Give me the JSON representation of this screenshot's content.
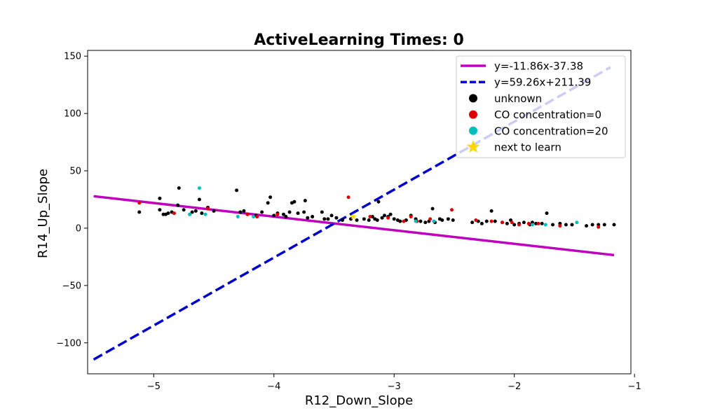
{
  "chart_data": {
    "type": "scatter",
    "title": "ActiveLearning Times: 0",
    "xlabel": "R12_Down_Slope",
    "ylabel": "R14_Up_Slope",
    "xlim": [
      -5.55,
      -1.03
    ],
    "ylim": [
      -127,
      155
    ],
    "xticks": [
      -5,
      -4,
      -3,
      -2,
      -1
    ],
    "yticks": [
      -100,
      -50,
      0,
      50,
      100,
      150
    ],
    "xtick_labels": [
      "−5",
      "−4",
      "−3",
      "−2",
      "−1"
    ],
    "ytick_labels": [
      "−100",
      "−50",
      "0",
      "50",
      "100",
      "150"
    ],
    "grid": false,
    "legend_position": "top-right",
    "lines": [
      {
        "name": "y=-11.86x-37.38",
        "slope": -11.86,
        "intercept": -37.38,
        "x_range": [
          -5.5,
          -1.17
        ],
        "color": "#bf00bf",
        "style": "solid"
      },
      {
        "name": "y=59.26x+211.39",
        "slope": 59.26,
        "intercept": 211.39,
        "x_range": [
          -5.5,
          -1.2
        ],
        "color": "#0000cc",
        "style": "dashed"
      }
    ],
    "series": [
      {
        "name": "unknown",
        "color": "#000000",
        "points": [
          [
            -5.12,
            14
          ],
          [
            -4.95,
            26
          ],
          [
            -4.95,
            16
          ],
          [
            -4.92,
            12
          ],
          [
            -4.9,
            12
          ],
          [
            -4.88,
            13
          ],
          [
            -4.85,
            14
          ],
          [
            -4.8,
            20
          ],
          [
            -4.79,
            35
          ],
          [
            -4.75,
            16
          ],
          [
            -4.7,
            12
          ],
          [
            -4.68,
            14
          ],
          [
            -4.65,
            15
          ],
          [
            -4.62,
            25
          ],
          [
            -4.6,
            13
          ],
          [
            -4.55,
            18
          ],
          [
            -4.5,
            15
          ],
          [
            -4.31,
            33
          ],
          [
            -4.28,
            14
          ],
          [
            -4.25,
            15
          ],
          [
            -4.22,
            12
          ],
          [
            -4.15,
            11
          ],
          [
            -4.1,
            14
          ],
          [
            -4.05,
            22
          ],
          [
            -4.03,
            27
          ],
          [
            -4.0,
            11
          ],
          [
            -3.97,
            13
          ],
          [
            -3.92,
            12
          ],
          [
            -3.9,
            10
          ],
          [
            -3.87,
            14
          ],
          [
            -3.85,
            22
          ],
          [
            -3.83,
            23
          ],
          [
            -3.8,
            13
          ],
          [
            -3.75,
            14
          ],
          [
            -3.74,
            24
          ],
          [
            -3.72,
            9
          ],
          [
            -3.68,
            10
          ],
          [
            -3.6,
            14
          ],
          [
            -3.58,
            8
          ],
          [
            -3.55,
            8
          ],
          [
            -3.52,
            11
          ],
          [
            -3.48,
            9
          ],
          [
            -3.43,
            7
          ],
          [
            -3.36,
            8
          ],
          [
            -3.31,
            7
          ],
          [
            -3.25,
            8
          ],
          [
            -3.21,
            7
          ],
          [
            -3.18,
            10
          ],
          [
            -3.16,
            8
          ],
          [
            -3.14,
            7
          ],
          [
            -3.13,
            23
          ],
          [
            -3.1,
            9
          ],
          [
            -3.08,
            11
          ],
          [
            -3.05,
            10
          ],
          [
            -3.03,
            12
          ],
          [
            -3.0,
            8
          ],
          [
            -2.97,
            7
          ],
          [
            -2.95,
            6
          ],
          [
            -2.9,
            7
          ],
          [
            -2.86,
            11
          ],
          [
            -2.82,
            8
          ],
          [
            -2.78,
            6
          ],
          [
            -2.74,
            5
          ],
          [
            -2.71,
            6
          ],
          [
            -2.68,
            17
          ],
          [
            -2.66,
            5
          ],
          [
            -2.62,
            8
          ],
          [
            -2.6,
            7
          ],
          [
            -2.55,
            8
          ],
          [
            -2.51,
            7
          ],
          [
            -2.35,
            5
          ],
          [
            -2.3,
            6
          ],
          [
            -2.27,
            4
          ],
          [
            -2.23,
            6
          ],
          [
            -2.19,
            15
          ],
          [
            -2.16,
            6
          ],
          [
            -2.1,
            5
          ],
          [
            -2.06,
            4
          ],
          [
            -2.03,
            7
          ],
          [
            -2.0,
            3
          ],
          [
            -1.96,
            4
          ],
          [
            -1.92,
            5
          ],
          [
            -1.87,
            3
          ],
          [
            -1.85,
            5
          ],
          [
            -1.82,
            4
          ],
          [
            -1.77,
            4
          ],
          [
            -1.73,
            13
          ],
          [
            -1.68,
            3
          ],
          [
            -1.62,
            4
          ],
          [
            -1.57,
            3
          ],
          [
            -1.52,
            3
          ],
          [
            -1.4,
            2
          ],
          [
            -1.35,
            3
          ],
          [
            -1.3,
            3
          ],
          [
            -1.25,
            3
          ],
          [
            -1.17,
            3
          ]
        ]
      },
      {
        "name": "CO concentration=0",
        "color": "#dd0000",
        "points": [
          [
            -5.12,
            22
          ],
          [
            -4.83,
            13
          ],
          [
            -4.55,
            17
          ],
          [
            -4.22,
            12
          ],
          [
            -4.14,
            10
          ],
          [
            -3.97,
            12
          ],
          [
            -3.38,
            27
          ],
          [
            -3.2,
            10
          ],
          [
            -3.05,
            9
          ],
          [
            -2.92,
            6
          ],
          [
            -2.86,
            10
          ],
          [
            -2.81,
            6
          ],
          [
            -2.7,
            8
          ],
          [
            -2.52,
            16
          ],
          [
            -2.32,
            7
          ],
          [
            -2.19,
            6
          ],
          [
            -2.1,
            5
          ],
          [
            -2.02,
            5
          ],
          [
            -1.96,
            3
          ],
          [
            -1.88,
            4
          ],
          [
            -1.8,
            4
          ],
          [
            -1.62,
            2
          ],
          [
            -1.3,
            1
          ]
        ]
      },
      {
        "name": "CO concentration=20",
        "color": "#00bfbf",
        "points": [
          [
            -4.7,
            12
          ],
          [
            -4.62,
            35
          ],
          [
            -4.57,
            12
          ],
          [
            -4.3,
            10
          ],
          [
            -4.17,
            10
          ],
          [
            -2.82,
            6
          ],
          [
            -2.67,
            6
          ],
          [
            -1.85,
            3
          ],
          [
            -1.74,
            3
          ],
          [
            -1.48,
            5
          ]
        ]
      },
      {
        "name": "next to learn",
        "color": "#ffd700",
        "marker": "star",
        "points": [
          [
            -3.34,
            10
          ]
        ]
      }
    ],
    "legend": [
      {
        "label": "y=-11.86x-37.38",
        "kind": "line-solid",
        "color": "#bf00bf"
      },
      {
        "label": "y=59.26x+211.39",
        "kind": "line-dashed",
        "color": "#0000cc"
      },
      {
        "label": "unknown",
        "kind": "dot",
        "color": "#000000"
      },
      {
        "label": "CO concentration=0",
        "kind": "dot",
        "color": "#dd0000"
      },
      {
        "label": "CO concentration=20",
        "kind": "dot",
        "color": "#00bfbf"
      },
      {
        "label": "next to learn",
        "kind": "star",
        "color": "#ffd700"
      }
    ]
  }
}
